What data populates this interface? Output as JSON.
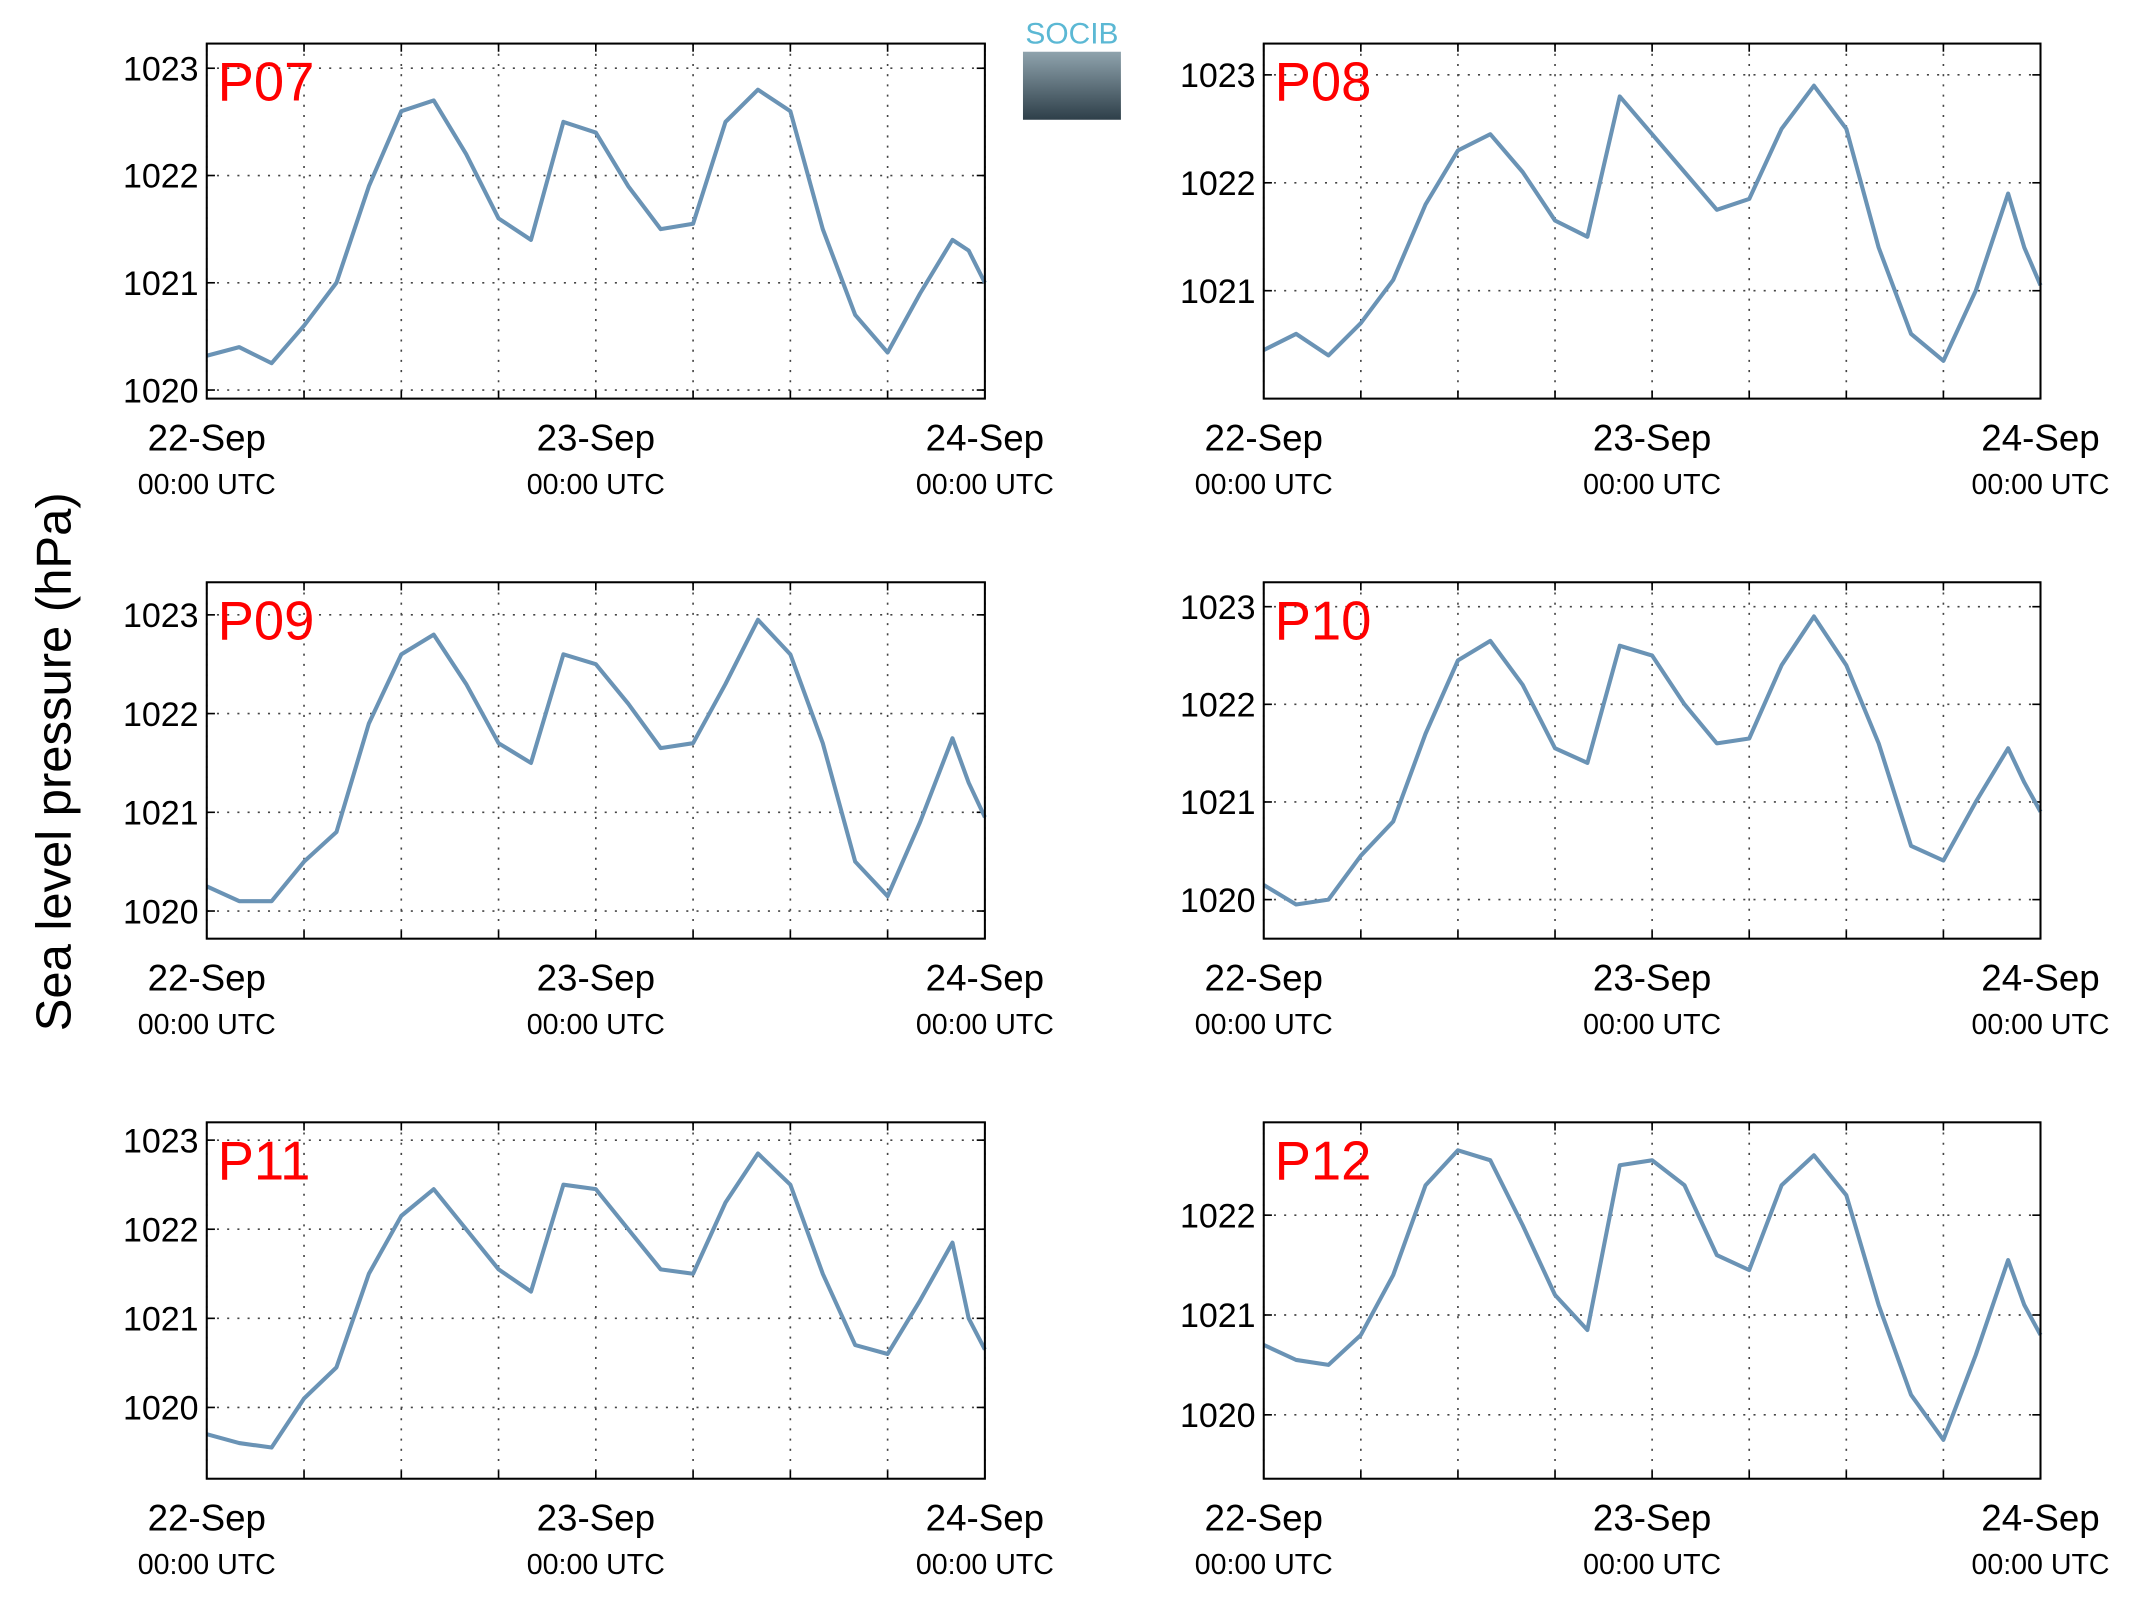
{
  "ylabel": "Sea level pressure (hPa)",
  "logo_text": "SOCIB",
  "chart_data": [
    {
      "type": "line",
      "title": "P07",
      "color": "#6a93b5",
      "x": [
        0,
        2,
        4,
        6,
        8,
        10,
        12,
        14,
        16,
        18,
        20,
        22,
        24,
        26,
        28,
        30,
        32,
        34,
        36,
        38,
        40,
        42,
        44,
        46,
        47,
        48
      ],
      "series": [
        {
          "values": [
            1020.32,
            1020.4,
            1020.25,
            1020.6,
            1021.0,
            1021.9,
            1022.6,
            1022.7,
            1022.2,
            1021.6,
            1021.4,
            1022.5,
            1022.4,
            1021.9,
            1021.5,
            1021.55,
            1022.5,
            1022.8,
            1022.6,
            1021.5,
            1020.7,
            1020.35,
            1020.9,
            1021.4,
            1021.3,
            1021.0
          ]
        }
      ],
      "xlim": [
        0,
        48
      ],
      "xticks": [
        {
          "value": 0,
          "label": [
            "22-Sep",
            "00:00 UTC"
          ]
        },
        {
          "value": 6,
          "label": null
        },
        {
          "value": 12,
          "label": null
        },
        {
          "value": 18,
          "label": null
        },
        {
          "value": 24,
          "label": [
            "23-Sep",
            "00:00 UTC"
          ]
        },
        {
          "value": 30,
          "label": null
        },
        {
          "value": 36,
          "label": null
        },
        {
          "value": 42,
          "label": null
        },
        {
          "value": 48,
          "label": [
            "24-Sep",
            "00:00 UTC"
          ]
        }
      ],
      "ylim": [
        1019.92,
        1023.23
      ],
      "yticks": [
        1020,
        1021,
        1022,
        1023
      ],
      "grid": true
    },
    {
      "type": "line",
      "title": "P08",
      "color": "#6a93b5",
      "x": [
        0,
        2,
        4,
        6,
        8,
        10,
        12,
        14,
        16,
        18,
        20,
        22,
        24,
        26,
        28,
        30,
        32,
        34,
        36,
        38,
        40,
        42,
        44,
        46,
        47,
        48
      ],
      "series": [
        {
          "values": [
            1020.45,
            1020.6,
            1020.4,
            1020.7,
            1021.1,
            1021.8,
            1022.3,
            1022.45,
            1022.1,
            1021.65,
            1021.5,
            1022.8,
            1022.45,
            1022.1,
            1021.75,
            1021.85,
            1022.5,
            1022.9,
            1022.5,
            1021.4,
            1020.6,
            1020.35,
            1021.0,
            1021.9,
            1021.4,
            1021.05
          ]
        }
      ],
      "xlim": [
        0,
        48
      ],
      "xticks": [
        {
          "value": 0,
          "label": [
            "22-Sep",
            "00:00 UTC"
          ]
        },
        {
          "value": 6,
          "label": null
        },
        {
          "value": 12,
          "label": null
        },
        {
          "value": 18,
          "label": null
        },
        {
          "value": 24,
          "label": [
            "23-Sep",
            "00:00 UTC"
          ]
        },
        {
          "value": 30,
          "label": null
        },
        {
          "value": 36,
          "label": null
        },
        {
          "value": 42,
          "label": null
        },
        {
          "value": 48,
          "label": [
            "24-Sep",
            "00:00 UTC"
          ]
        }
      ],
      "ylim": [
        1020.0,
        1023.29
      ],
      "yticks": [
        1021,
        1022,
        1023
      ],
      "grid": true
    },
    {
      "type": "line",
      "title": "P09",
      "color": "#6a93b5",
      "x": [
        0,
        2,
        4,
        6,
        8,
        10,
        12,
        14,
        16,
        18,
        20,
        22,
        24,
        26,
        28,
        30,
        32,
        34,
        36,
        38,
        40,
        42,
        44,
        46,
        47,
        48
      ],
      "series": [
        {
          "values": [
            1020.25,
            1020.1,
            1020.1,
            1020.5,
            1020.8,
            1021.9,
            1022.6,
            1022.8,
            1022.3,
            1021.7,
            1021.5,
            1022.6,
            1022.5,
            1022.1,
            1021.65,
            1021.7,
            1022.3,
            1022.95,
            1022.6,
            1021.7,
            1020.5,
            1020.15,
            1020.9,
            1021.75,
            1021.3,
            1020.95
          ]
        }
      ],
      "xlim": [
        0,
        48
      ],
      "xticks": [
        {
          "value": 0,
          "label": [
            "22-Sep",
            "00:00 UTC"
          ]
        },
        {
          "value": 6,
          "label": null
        },
        {
          "value": 12,
          "label": null
        },
        {
          "value": 18,
          "label": null
        },
        {
          "value": 24,
          "label": [
            "23-Sep",
            "00:00 UTC"
          ]
        },
        {
          "value": 30,
          "label": null
        },
        {
          "value": 36,
          "label": null
        },
        {
          "value": 42,
          "label": null
        },
        {
          "value": 48,
          "label": [
            "24-Sep",
            "00:00 UTC"
          ]
        }
      ],
      "ylim": [
        1019.72,
        1023.33
      ],
      "yticks": [
        1020,
        1021,
        1022,
        1023
      ],
      "grid": true
    },
    {
      "type": "line",
      "title": "P10",
      "color": "#6a93b5",
      "x": [
        0,
        2,
        4,
        6,
        8,
        10,
        12,
        14,
        16,
        18,
        20,
        22,
        24,
        26,
        28,
        30,
        32,
        34,
        36,
        38,
        40,
        42,
        44,
        46,
        47,
        48
      ],
      "series": [
        {
          "values": [
            1020.15,
            1019.95,
            1020.0,
            1020.45,
            1020.8,
            1021.7,
            1022.45,
            1022.65,
            1022.2,
            1021.55,
            1021.4,
            1022.6,
            1022.5,
            1022.0,
            1021.6,
            1021.65,
            1022.4,
            1022.9,
            1022.4,
            1021.6,
            1020.55,
            1020.4,
            1021.0,
            1021.55,
            1021.2,
            1020.9
          ]
        }
      ],
      "xlim": [
        0,
        48
      ],
      "xticks": [
        {
          "value": 0,
          "label": [
            "22-Sep",
            "00:00 UTC"
          ]
        },
        {
          "value": 6,
          "label": null
        },
        {
          "value": 12,
          "label": null
        },
        {
          "value": 18,
          "label": null
        },
        {
          "value": 24,
          "label": [
            "23-Sep",
            "00:00 UTC"
          ]
        },
        {
          "value": 30,
          "label": null
        },
        {
          "value": 36,
          "label": null
        },
        {
          "value": 42,
          "label": null
        },
        {
          "value": 48,
          "label": [
            "24-Sep",
            "00:00 UTC"
          ]
        }
      ],
      "ylim": [
        1019.6,
        1023.25
      ],
      "yticks": [
        1020,
        1021,
        1022,
        1023
      ],
      "grid": true
    },
    {
      "type": "line",
      "title": "P11",
      "color": "#6a93b5",
      "x": [
        0,
        2,
        4,
        6,
        8,
        10,
        12,
        14,
        16,
        18,
        20,
        22,
        24,
        26,
        28,
        30,
        32,
        34,
        36,
        38,
        40,
        42,
        44,
        46,
        47,
        48
      ],
      "series": [
        {
          "values": [
            1019.7,
            1019.6,
            1019.55,
            1020.1,
            1020.45,
            1021.5,
            1022.15,
            1022.45,
            1022.0,
            1021.55,
            1021.3,
            1022.5,
            1022.45,
            1022.0,
            1021.55,
            1021.5,
            1022.3,
            1022.85,
            1022.5,
            1021.5,
            1020.7,
            1020.6,
            1021.2,
            1021.85,
            1021.0,
            1020.65
          ]
        }
      ],
      "xlim": [
        0,
        48
      ],
      "xticks": [
        {
          "value": 0,
          "label": [
            "22-Sep",
            "00:00 UTC"
          ]
        },
        {
          "value": 6,
          "label": null
        },
        {
          "value": 12,
          "label": null
        },
        {
          "value": 18,
          "label": null
        },
        {
          "value": 24,
          "label": [
            "23-Sep",
            "00:00 UTC"
          ]
        },
        {
          "value": 30,
          "label": null
        },
        {
          "value": 36,
          "label": null
        },
        {
          "value": 42,
          "label": null
        },
        {
          "value": 48,
          "label": [
            "24-Sep",
            "00:00 UTC"
          ]
        }
      ],
      "ylim": [
        1019.2,
        1023.2
      ],
      "yticks": [
        1020,
        1021,
        1022,
        1023
      ],
      "grid": true
    },
    {
      "type": "line",
      "title": "P12",
      "color": "#6a93b5",
      "x": [
        0,
        2,
        4,
        6,
        8,
        10,
        12,
        14,
        16,
        18,
        20,
        22,
        24,
        26,
        28,
        30,
        32,
        34,
        36,
        38,
        40,
        42,
        44,
        46,
        47,
        48
      ],
      "series": [
        {
          "values": [
            1020.7,
            1020.55,
            1020.5,
            1020.8,
            1021.4,
            1022.3,
            1022.65,
            1022.55,
            1021.9,
            1021.2,
            1020.85,
            1022.5,
            1022.55,
            1022.3,
            1021.6,
            1021.45,
            1022.3,
            1022.6,
            1022.2,
            1021.1,
            1020.2,
            1019.75,
            1020.6,
            1021.55,
            1021.1,
            1020.8
          ]
        }
      ],
      "xlim": [
        0,
        48
      ],
      "xticks": [
        {
          "value": 0,
          "label": [
            "22-Sep",
            "00:00 UTC"
          ]
        },
        {
          "value": 6,
          "label": null
        },
        {
          "value": 12,
          "label": null
        },
        {
          "value": 18,
          "label": null
        },
        {
          "value": 24,
          "label": [
            "23-Sep",
            "00:00 UTC"
          ]
        },
        {
          "value": 30,
          "label": null
        },
        {
          "value": 36,
          "label": null
        },
        {
          "value": 42,
          "label": null
        },
        {
          "value": 48,
          "label": [
            "24-Sep",
            "00:00 UTC"
          ]
        }
      ],
      "ylim": [
        1019.36,
        1022.93
      ],
      "yticks": [
        1020,
        1021,
        1022
      ],
      "grid": true
    }
  ]
}
